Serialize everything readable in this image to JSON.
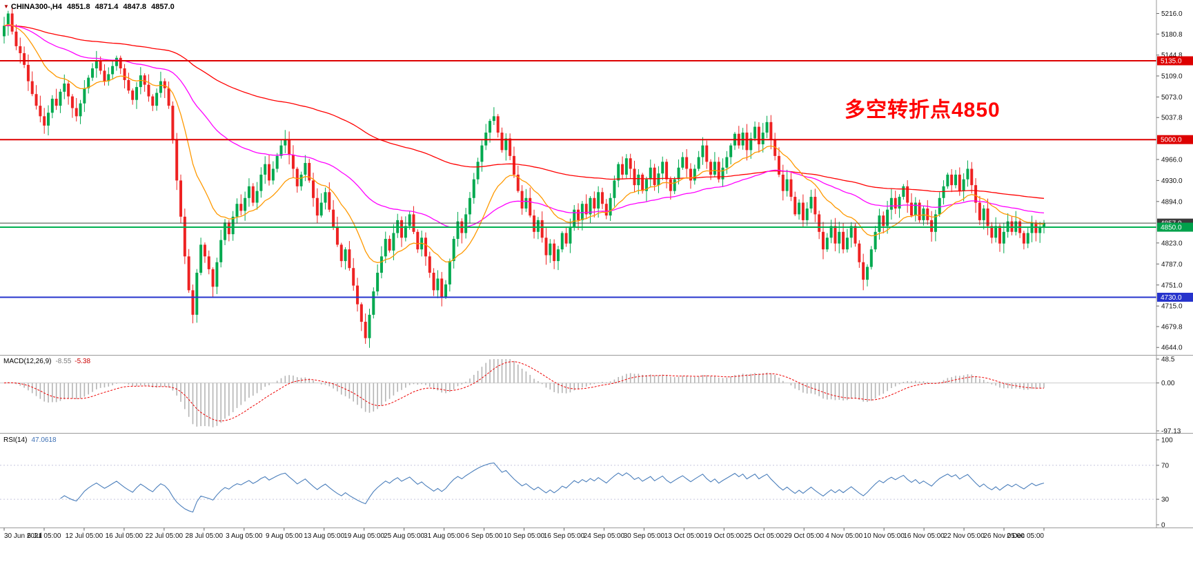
{
  "symbol_line": {
    "marker": "▼",
    "symbol": "CHINA300-,H4",
    "open": "4851.8",
    "high": "4871.4",
    "low": "4847.8",
    "close": "4857.0"
  },
  "annotation": {
    "text": "多空转折点4850",
    "color": "#ff0000"
  },
  "indicators": {
    "macd": {
      "name": "MACD(12,26,9)",
      "macd_value": "-8.55",
      "signal_value": "-5.38"
    },
    "rsi": {
      "name": "RSI(14)",
      "value": "47.0618"
    }
  },
  "colors": {
    "background": "#ffffff",
    "candle_up": "#00a94f",
    "candle_down": "#ee2222",
    "separator": "#9a9a9a",
    "axis_text": "#111111",
    "annotation": "#ff0000"
  },
  "chart_data": {
    "type": "candlestick",
    "title": "CHINA300-,H4",
    "timeframe": "H4",
    "x_labels": [
      "30 Jun 2021",
      "6 Jul 05:00",
      "12 Jul 05:00",
      "16 Jul 05:00",
      "22 Jul 05:00",
      "28 Jul 05:00",
      "3 Aug 05:00",
      "9 Aug 05:00",
      "13 Aug 05:00",
      "19 Aug 05:00",
      "25 Aug 05:00",
      "31 Aug 05:00",
      "6 Sep 05:00",
      "10 Sep 05:00",
      "16 Sep 05:00",
      "24 Sep 05:00",
      "30 Sep 05:00",
      "13 Oct 05:00",
      "19 Oct 05:00",
      "25 Oct 05:00",
      "29 Oct 05:00",
      "4 Nov 05:00",
      "10 Nov 05:00",
      "16 Nov 05:00",
      "22 Nov 05:00",
      "26 Nov 05:00",
      "2 Dec 05:00"
    ],
    "closes": [
      5195,
      5216,
      5185,
      5160,
      5148,
      5128,
      5100,
      5078,
      5058,
      5040,
      5024,
      5046,
      5070,
      5058,
      5082,
      5096,
      5074,
      5054,
      5040,
      5062,
      5088,
      5106,
      5122,
      5136,
      5118,
      5100,
      5112,
      5126,
      5140,
      5122,
      5102,
      5084,
      5068,
      5090,
      5110,
      5094,
      5074,
      5058,
      5080,
      5100,
      5088,
      5058,
      5000,
      4930,
      4868,
      4800,
      4742,
      4700,
      4772,
      4820,
      4800,
      4778,
      4748,
      4790,
      4828,
      4858,
      4838,
      4868,
      4890,
      4878,
      4900,
      4920,
      4892,
      4912,
      4940,
      4958,
      4930,
      4950,
      4972,
      4990,
      5000,
      4974,
      4950,
      4920,
      4940,
      4960,
      4930,
      4900,
      4870,
      4892,
      4910,
      4880,
      4850,
      4820,
      4792,
      4812,
      4780,
      4750,
      4718,
      4688,
      4660,
      4700,
      4740,
      4772,
      4800,
      4830,
      4810,
      4840,
      4862,
      4832,
      4852,
      4872,
      4842,
      4812,
      4832,
      4800,
      4772,
      4742,
      4762,
      4730,
      4752,
      4792,
      4830,
      4860,
      4840,
      4872,
      4900,
      4932,
      4962,
      4990,
      5012,
      5032,
      5040,
      5012,
      4982,
      5002,
      4972,
      4940,
      4912,
      4882,
      4900,
      4870,
      4842,
      4862,
      4832,
      4802,
      4822,
      4792,
      4812,
      4840,
      4822,
      4850,
      4880,
      4862,
      4890,
      4872,
      4900,
      4882,
      4910,
      4890,
      4870,
      4900,
      4930,
      4958,
      4940,
      4968,
      4950,
      4922,
      4940,
      4912,
      4932,
      4952,
      4922,
      4942,
      4962,
      4932,
      4912,
      4932,
      4952,
      4970,
      4950,
      4930,
      4950,
      4970,
      4990,
      4962,
      4940,
      4962,
      4932,
      4952,
      4970,
      4990,
      5010,
      4990,
      5012,
      4982,
      5002,
      5022,
      4992,
      5012,
      5030,
      5000,
      4972,
      4940,
      4912,
      4932,
      4902,
      4872,
      4892,
      4862,
      4882,
      4902,
      4872,
      4842,
      4812,
      4832,
      4852,
      4822,
      4842,
      4812,
      4832,
      4852,
      4822,
      4790,
      4760,
      4782,
      4812,
      4842,
      4870,
      4852,
      4880,
      4900,
      4882,
      4902,
      4920,
      4892,
      4870,
      4892,
      4862,
      4882,
      4862,
      4842,
      4872,
      4900,
      4920,
      4940,
      4922,
      4940,
      4912,
      4932,
      4950,
      4922,
      4892,
      4862,
      4882,
      4852,
      4832,
      4852,
      4822,
      4842,
      4860,
      4842,
      4860,
      4840,
      4822,
      4840,
      4858,
      4840,
      4850,
      4857
    ],
    "price_range": [
      4636,
      5232
    ],
    "price_ticks": [
      "5216.0",
      "5180.8",
      "5144.8",
      "5109.0",
      "5073.0",
      "5037.8",
      "4966.0",
      "4930.0",
      "4894.0",
      "4823.0",
      "4787.0",
      "4751.0",
      "4715.0",
      "4679.8",
      "4644.0"
    ],
    "levels": [
      {
        "value": 5135.0,
        "label": "5135.0",
        "line": "#dd0000",
        "bg": "#dd0000",
        "width": 2
      },
      {
        "value": 5000.0,
        "label": "5000.0",
        "line": "#dd0000",
        "bg": "#dd0000",
        "width": 2
      },
      {
        "value": 4857.0,
        "label": "4857.0",
        "line": "#3a4a3a",
        "bg": "#3a3a3a",
        "width": 1
      },
      {
        "value": 4850.0,
        "label": "4850.0",
        "line": "#00b050",
        "bg": "#00a14b",
        "width": 2
      },
      {
        "value": 4730.0,
        "label": "4730.0",
        "line": "#2633cc",
        "bg": "#2633cc",
        "width": 2
      }
    ],
    "moving_averages": [
      {
        "name": "slow-ma-line",
        "period": 150,
        "color": "#ff0000"
      },
      {
        "name": "mid-ma-line",
        "period": 60,
        "color": "#ff00ff"
      },
      {
        "name": "fast-ma-line",
        "period": 18,
        "color": "#ff9900"
      }
    ],
    "macd": {
      "fast": 12,
      "slow": 26,
      "signal": 9,
      "ticks": [
        "48.5",
        "0.00",
        "-97.13"
      ],
      "range": [
        -97.13,
        48.5
      ],
      "histogram_color": "#b4b4b4",
      "signal_color": "#ee0000"
    },
    "rsi": {
      "period": 14,
      "ticks": [
        "100",
        "70",
        "30",
        "0"
      ],
      "levels": [
        70,
        30
      ],
      "range": [
        0,
        100
      ],
      "line_color": "#4a7ebb"
    },
    "legend_position": "none",
    "grid": false
  }
}
